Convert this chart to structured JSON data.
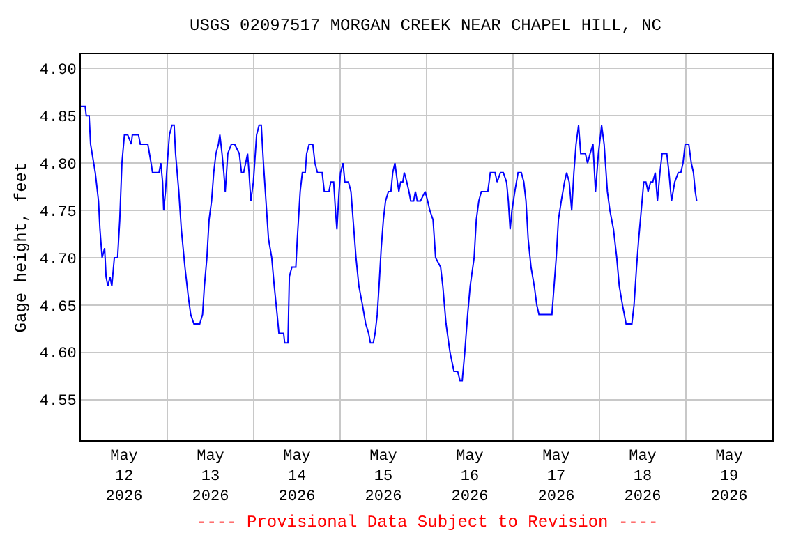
{
  "chart_data": {
    "type": "line",
    "title": "USGS 02097517 MORGAN CREEK NEAR CHAPEL HILL, NC",
    "ylabel": "Gage height, feet",
    "annotations": [
      "---- Provisional Data Subject to Revision ----"
    ],
    "x": [
      "2026-05-12T00:00",
      "2026-05-12T01:12",
      "2026-05-12T01:30",
      "2026-05-12T02:18",
      "2026-05-12T02:42",
      "2026-05-12T04:00",
      "2026-05-12T04:54",
      "2026-05-12T05:18",
      "2026-05-12T05:54",
      "2026-05-12T06:36",
      "2026-05-12T07:00",
      "2026-05-12T07:30",
      "2026-05-12T08:06",
      "2026-05-12T08:36",
      "2026-05-12T09:18",
      "2026-05-12T10:12",
      "2026-05-12T10:48",
      "2026-05-12T11:24",
      "2026-05-12T12:06",
      "2026-05-12T13:00",
      "2026-05-12T14:00",
      "2026-05-12T14:18",
      "2026-05-12T16:00",
      "2026-05-12T16:30",
      "2026-05-12T18:36",
      "2026-05-12T19:30",
      "2026-05-12T19:54",
      "2026-05-12T21:42",
      "2026-05-12T22:12",
      "2026-05-12T22:42",
      "2026-05-12T23:00",
      "2026-05-12T23:30",
      "2026-05-13T00:00",
      "2026-05-13T00:36",
      "2026-05-13T01:18",
      "2026-05-13T01:54",
      "2026-05-13T02:18",
      "2026-05-13T03:12",
      "2026-05-13T03:54",
      "2026-05-13T04:54",
      "2026-05-13T05:48",
      "2026-05-13T06:30",
      "2026-05-13T07:24",
      "2026-05-13T09:00",
      "2026-05-13T09:48",
      "2026-05-13T10:18",
      "2026-05-13T11:00",
      "2026-05-13T11:36",
      "2026-05-13T12:18",
      "2026-05-13T12:54",
      "2026-05-13T13:30",
      "2026-05-13T14:12",
      "2026-05-13T14:36",
      "2026-05-13T15:12",
      "2026-05-13T15:42",
      "2026-05-13T16:06",
      "2026-05-13T16:48",
      "2026-05-13T17:48",
      "2026-05-13T18:42",
      "2026-05-13T20:00",
      "2026-05-13T20:36",
      "2026-05-13T21:12",
      "2026-05-13T22:18",
      "2026-05-13T22:42",
      "2026-05-13T23:12",
      "2026-05-13T23:54",
      "2026-05-14T00:48",
      "2026-05-14T01:30",
      "2026-05-14T02:06",
      "2026-05-14T02:42",
      "2026-05-14T03:24",
      "2026-05-14T04:06",
      "2026-05-14T05:00",
      "2026-05-14T05:42",
      "2026-05-14T06:30",
      "2026-05-14T07:00",
      "2026-05-14T08:18",
      "2026-05-14T08:36",
      "2026-05-14T09:30",
      "2026-05-14T09:54",
      "2026-05-14T10:36",
      "2026-05-14T11:42",
      "2026-05-14T12:06",
      "2026-05-14T12:54",
      "2026-05-14T13:30",
      "2026-05-14T14:18",
      "2026-05-14T14:42",
      "2026-05-14T15:24",
      "2026-05-14T16:24",
      "2026-05-14T17:00",
      "2026-05-14T17:42",
      "2026-05-14T19:00",
      "2026-05-14T19:36",
      "2026-05-14T20:54",
      "2026-05-14T21:24",
      "2026-05-14T22:12",
      "2026-05-14T22:42",
      "2026-05-14T23:06",
      "2026-05-14T23:42",
      "2026-05-15T00:06",
      "2026-05-15T00:48",
      "2026-05-15T01:18",
      "2026-05-15T02:18",
      "2026-05-15T03:00",
      "2026-05-15T03:36",
      "2026-05-15T04:24",
      "2026-05-15T05:12",
      "2026-05-15T06:12",
      "2026-05-15T07:06",
      "2026-05-15T07:54",
      "2026-05-15T08:24",
      "2026-05-15T09:12",
      "2026-05-15T09:42",
      "2026-05-15T10:18",
      "2026-05-15T10:48",
      "2026-05-15T11:24",
      "2026-05-15T12:00",
      "2026-05-15T12:36",
      "2026-05-15T13:24",
      "2026-05-15T14:06",
      "2026-05-15T14:36",
      "2026-05-15T15:12",
      "2026-05-15T15:54",
      "2026-05-15T16:18",
      "2026-05-15T16:48",
      "2026-05-15T17:24",
      "2026-05-15T17:48",
      "2026-05-15T18:30",
      "2026-05-15T19:06",
      "2026-05-15T19:36",
      "2026-05-15T20:24",
      "2026-05-15T20:54",
      "2026-05-15T21:24",
      "2026-05-15T22:18",
      "2026-05-15T23:36",
      "2026-05-16T00:18",
      "2026-05-16T00:54",
      "2026-05-16T01:48",
      "2026-05-16T02:30",
      "2026-05-16T03:54",
      "2026-05-16T04:30",
      "2026-05-16T05:24",
      "2026-05-16T06:30",
      "2026-05-16T07:36",
      "2026-05-16T08:36",
      "2026-05-16T09:18",
      "2026-05-16T09:54",
      "2026-05-16T10:36",
      "2026-05-16T11:24",
      "2026-05-16T12:06",
      "2026-05-16T13:12",
      "2026-05-16T13:48",
      "2026-05-16T14:30",
      "2026-05-16T15:12",
      "2026-05-16T17:00",
      "2026-05-16T17:42",
      "2026-05-16T19:00",
      "2026-05-16T19:36",
      "2026-05-16T20:30",
      "2026-05-16T21:18",
      "2026-05-16T22:12",
      "2026-05-16T22:42",
      "2026-05-16T23:12",
      "2026-05-16T23:42",
      "2026-05-17T00:30",
      "2026-05-17T01:24",
      "2026-05-17T02:18",
      "2026-05-17T03:00",
      "2026-05-17T03:36",
      "2026-05-17T04:12",
      "2026-05-17T05:00",
      "2026-05-17T05:54",
      "2026-05-17T06:36",
      "2026-05-17T07:12",
      "2026-05-17T10:48",
      "2026-05-17T11:24",
      "2026-05-17T12:00",
      "2026-05-17T12:36",
      "2026-05-17T13:24",
      "2026-05-17T14:18",
      "2026-05-17T14:54",
      "2026-05-17T15:36",
      "2026-05-17T16:18",
      "2026-05-17T16:54",
      "2026-05-17T17:30",
      "2026-05-17T18:12",
      "2026-05-17T18:48",
      "2026-05-17T20:06",
      "2026-05-17T20:42",
      "2026-05-17T21:24",
      "2026-05-17T22:12",
      "2026-05-17T22:54",
      "2026-05-17T23:42",
      "2026-05-18T00:36",
      "2026-05-18T01:18",
      "2026-05-18T02:12",
      "2026-05-18T02:54",
      "2026-05-18T03:54",
      "2026-05-18T04:48",
      "2026-05-18T05:30",
      "2026-05-18T06:24",
      "2026-05-18T07:24",
      "2026-05-18T08:06",
      "2026-05-18T09:00",
      "2026-05-18T09:36",
      "2026-05-18T10:18",
      "2026-05-18T10:54",
      "2026-05-18T11:36",
      "2026-05-18T12:18",
      "2026-05-18T12:54",
      "2026-05-18T13:30",
      "2026-05-18T14:12",
      "2026-05-18T14:48",
      "2026-05-18T15:30",
      "2026-05-18T16:06",
      "2026-05-18T16:48",
      "2026-05-18T17:24",
      "2026-05-18T18:06",
      "2026-05-18T18:42",
      "2026-05-18T19:18",
      "2026-05-18T20:00",
      "2026-05-18T20:54",
      "2026-05-18T21:54",
      "2026-05-18T22:36",
      "2026-05-18T23:12",
      "2026-05-18T23:48",
      "2026-05-19T00:48",
      "2026-05-19T01:30",
      "2026-05-19T02:06",
      "2026-05-19T02:36",
      "2026-05-19T03:00"
    ],
    "series": [
      {
        "color": "#0000ff",
        "values": [
          4.86,
          4.86,
          4.85,
          4.85,
          4.82,
          4.79,
          4.76,
          4.73,
          4.7,
          4.71,
          4.68,
          4.67,
          4.68,
          4.67,
          4.7,
          4.7,
          4.74,
          4.8,
          4.83,
          4.83,
          4.82,
          4.83,
          4.83,
          4.82,
          4.82,
          4.8,
          4.79,
          4.79,
          4.8,
          4.78,
          4.75,
          4.77,
          4.8,
          4.83,
          4.84,
          4.84,
          4.81,
          4.77,
          4.73,
          4.69,
          4.66,
          4.64,
          4.63,
          4.63,
          4.64,
          4.67,
          4.7,
          4.74,
          4.76,
          4.79,
          4.81,
          4.82,
          4.83,
          4.81,
          4.79,
          4.77,
          4.81,
          4.82,
          4.82,
          4.81,
          4.79,
          4.79,
          4.81,
          4.79,
          4.76,
          4.78,
          4.83,
          4.84,
          4.84,
          4.8,
          4.76,
          4.72,
          4.7,
          4.67,
          4.64,
          4.62,
          4.62,
          4.61,
          4.61,
          4.68,
          4.69,
          4.69,
          4.72,
          4.77,
          4.79,
          4.79,
          4.81,
          4.82,
          4.82,
          4.8,
          4.79,
          4.79,
          4.77,
          4.77,
          4.78,
          4.78,
          4.75,
          4.73,
          4.77,
          4.79,
          4.8,
          4.78,
          4.78,
          4.77,
          4.74,
          4.7,
          4.67,
          4.65,
          4.63,
          4.62,
          4.61,
          4.61,
          4.62,
          4.64,
          4.67,
          4.71,
          4.74,
          4.76,
          4.77,
          4.77,
          4.79,
          4.8,
          4.78,
          4.77,
          4.78,
          4.78,
          4.79,
          4.78,
          4.77,
          4.76,
          4.76,
          4.77,
          4.76,
          4.76,
          4.77,
          4.76,
          4.75,
          4.74,
          4.7,
          4.69,
          4.67,
          4.63,
          4.6,
          4.58,
          4.58,
          4.57,
          4.57,
          4.6,
          4.64,
          4.67,
          4.7,
          4.74,
          4.76,
          4.77,
          4.77,
          4.79,
          4.79,
          4.78,
          4.79,
          4.79,
          4.78,
          4.76,
          4.73,
          4.75,
          4.77,
          4.79,
          4.79,
          4.78,
          4.76,
          4.72,
          4.69,
          4.67,
          4.65,
          4.64,
          4.64,
          4.67,
          4.7,
          4.74,
          4.76,
          4.78,
          4.79,
          4.78,
          4.75,
          4.79,
          4.82,
          4.84,
          4.81,
          4.81,
          4.8,
          4.81,
          4.82,
          4.77,
          4.81,
          4.84,
          4.82,
          4.77,
          4.75,
          4.73,
          4.7,
          4.67,
          4.65,
          4.63,
          4.63,
          4.63,
          4.65,
          4.69,
          4.72,
          4.75,
          4.78,
          4.78,
          4.77,
          4.78,
          4.78,
          4.79,
          4.76,
          4.79,
          4.81,
          4.81,
          4.81,
          4.79,
          4.76,
          4.78,
          4.79,
          4.79,
          4.8,
          4.82,
          4.82,
          4.8,
          4.79,
          4.77,
          4.76
        ]
      }
    ],
    "xlim": [
      "2026-05-12",
      "2026-05-20"
    ],
    "ylim": [
      4.507,
      4.915
    ],
    "xticks": [
      {
        "value": "2026-05-12",
        "label": null
      },
      {
        "value": "2026-05-12T12:00",
        "label": "May\n12\n2026"
      },
      {
        "value": "2026-05-13",
        "label": null
      },
      {
        "value": "2026-05-13T12:00",
        "label": "May\n13\n2026"
      },
      {
        "value": "2026-05-14",
        "label": null
      },
      {
        "value": "2026-05-14T12:00",
        "label": "May\n14\n2026"
      },
      {
        "value": "2026-05-15",
        "label": null
      },
      {
        "value": "2026-05-15T12:00",
        "label": "May\n15\n2026"
      },
      {
        "value": "2026-05-16",
        "label": null
      },
      {
        "value": "2026-05-16T12:00",
        "label": "May\n16\n2026"
      },
      {
        "value": "2026-05-17",
        "label": null
      },
      {
        "value": "2026-05-17T12:00",
        "label": "May\n17\n2026"
      },
      {
        "value": "2026-05-18",
        "label": null
      },
      {
        "value": "2026-05-18T12:00",
        "label": "May\n18\n2026"
      },
      {
        "value": "2026-05-19",
        "label": null
      },
      {
        "value": "2026-05-19T12:00",
        "label": "May\n19\n2026"
      },
      {
        "value": "2026-05-20",
        "label": null
      }
    ],
    "yticks": [
      {
        "value": 4.55,
        "label": "4.55"
      },
      {
        "value": 4.6,
        "label": "4.60"
      },
      {
        "value": 4.65,
        "label": "4.65"
      },
      {
        "value": 4.7,
        "label": "4.70"
      },
      {
        "value": 4.75,
        "label": "4.75"
      },
      {
        "value": 4.8,
        "label": "4.80"
      },
      {
        "value": 4.85,
        "label": "4.85"
      },
      {
        "value": 4.9,
        "label": "4.90"
      }
    ],
    "grid": true,
    "legend": false,
    "marker": "none",
    "line_style": "solid"
  }
}
